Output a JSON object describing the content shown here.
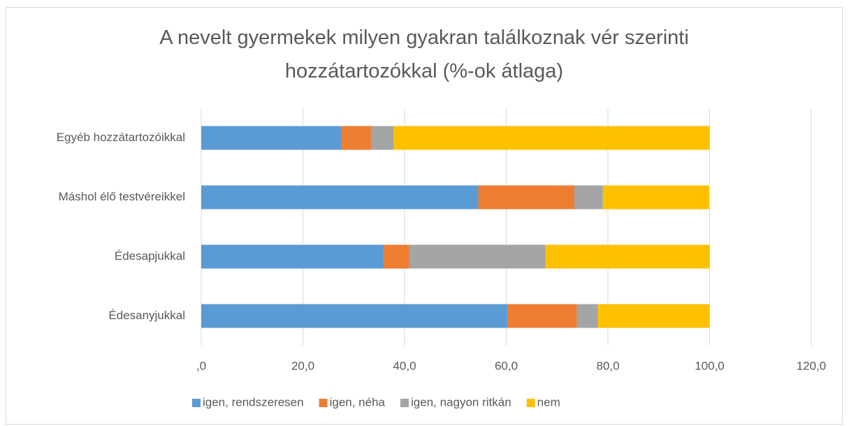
{
  "chart_data": {
    "type": "stacked-bar-horizontal",
    "title": "A nevelt gyermekek milyen gyakran találkoznak vér szerinti hozzátartozókkal (%-ok átlaga)",
    "categories": [
      "Egyéb hozzátartozóikkal",
      "Máshol élő testvéreikkel",
      "Édesapjukkal",
      "Édesanyjukkal"
    ],
    "series": [
      {
        "name": "igen, rendszeresen",
        "color": "#5b9bd5",
        "values": [
          27.5,
          54.5,
          35.9,
          60.2
        ]
      },
      {
        "name": "igen, néha",
        "color": "#ed7d31",
        "values": [
          5.9,
          18.9,
          5.0,
          13.7
        ]
      },
      {
        "name": "igen, nagyon ritkán",
        "color": "#a5a5a5",
        "values": [
          4.4,
          5.6,
          26.8,
          4.1
        ]
      },
      {
        "name": "nem",
        "color": "#ffc000",
        "values": [
          62.2,
          20.9,
          32.3,
          22.0
        ]
      }
    ],
    "xlim": [
      0,
      120
    ],
    "xticks": [
      {
        "value": 0,
        "label": ",0"
      },
      {
        "value": 20,
        "label": "20,0"
      },
      {
        "value": 40,
        "label": "40,0"
      },
      {
        "value": 60,
        "label": "60,0"
      },
      {
        "value": 80,
        "label": "80,0"
      },
      {
        "value": 100,
        "label": "100,0"
      },
      {
        "value": 120,
        "label": "120,0"
      }
    ],
    "grid": true,
    "legend": "bottom"
  }
}
